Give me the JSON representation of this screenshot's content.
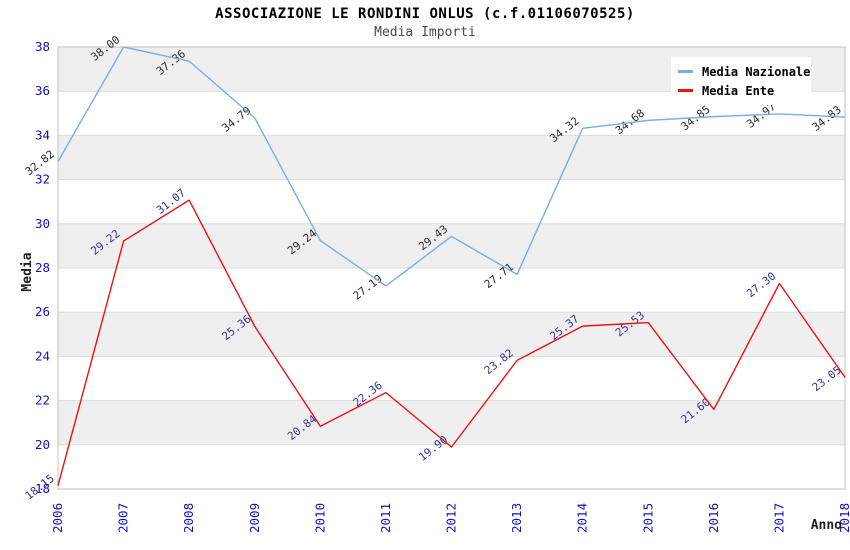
{
  "header": {
    "title": "ASSOCIAZIONE LE RONDINI ONLUS (c.f.01106070525)",
    "subtitle": "Media Importi"
  },
  "legend": {
    "position": "top-right",
    "items": [
      {
        "label": "Media Nazionale",
        "color": "#79aee6"
      },
      {
        "label": "Media Ente",
        "color": "#ee1212"
      }
    ]
  },
  "axes": {
    "y_label": "Media",
    "x_label": "Anno",
    "y_ticks": [
      18,
      20,
      22,
      24,
      26,
      28,
      30,
      32,
      34,
      36,
      38
    ],
    "x_ticks": [
      "2006",
      "2007",
      "2008",
      "2009",
      "2010",
      "2011",
      "2012",
      "2013",
      "2014",
      "2015",
      "2016",
      "2017",
      "2018"
    ],
    "tick_text_color": "#1111cc"
  },
  "chart_data": {
    "type": "line",
    "title": "ASSOCIAZIONE LE RONDINI ONLUS (c.f.01106070525)",
    "subtitle": "Media Importi",
    "xlabel": "Anno",
    "ylabel": "Media",
    "x": [
      2006,
      2007,
      2008,
      2009,
      2010,
      2011,
      2012,
      2013,
      2014,
      2015,
      2016,
      2017,
      2018
    ],
    "series": [
      {
        "name": "Media Nazionale",
        "color": "#79aee6",
        "label_color": "#2b2b2b",
        "values": [
          32.82,
          38.0,
          37.36,
          34.79,
          29.24,
          27.19,
          29.43,
          27.71,
          34.32,
          34.68,
          34.85,
          34.97,
          34.83
        ]
      },
      {
        "name": "Media Ente",
        "color": "#ee1212",
        "label_color": "#333399",
        "values": [
          18.15,
          29.22,
          31.07,
          25.36,
          20.84,
          22.36,
          19.9,
          23.82,
          25.37,
          25.53,
          21.6,
          27.3,
          23.05
        ]
      }
    ],
    "ylim": [
      18,
      38
    ],
    "ytick_step": 2,
    "grid": "horizontal",
    "band_fill": "#efefef",
    "grid_color": "#dcdcdc",
    "border_color": "#c0c0c0",
    "legend_position": "top-right",
    "point_label_format": "2-decimals",
    "point_label_rotation_deg": -38
  }
}
